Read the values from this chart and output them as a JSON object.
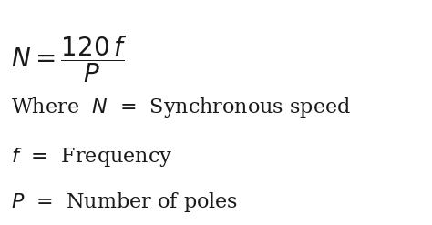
{
  "background_color": "#ffffff",
  "text_color": "#1a1a1a",
  "fontsize_formula": 20,
  "fontsize_body": 16,
  "fig_width": 4.74,
  "fig_height": 2.47,
  "dpi": 100
}
